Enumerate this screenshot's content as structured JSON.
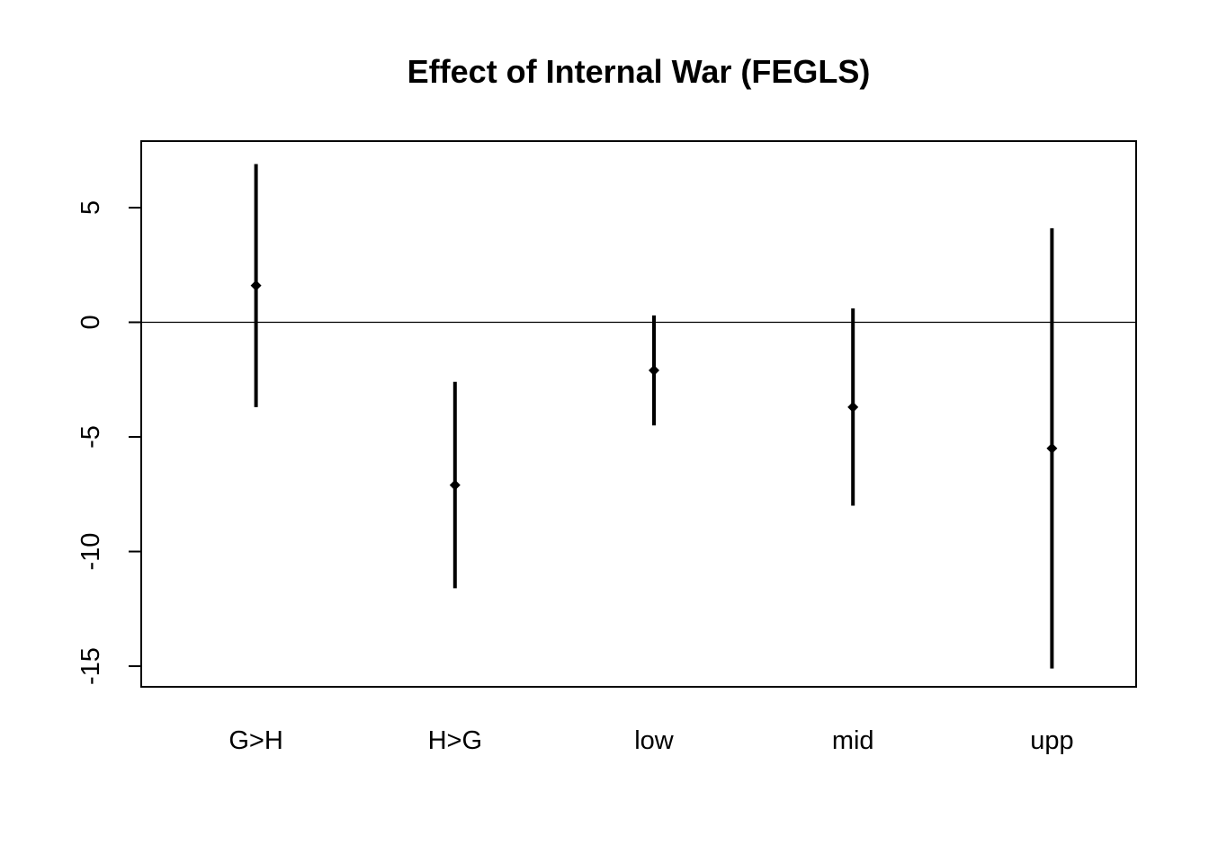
{
  "chart_data": {
    "type": "errorbar",
    "title": "Effect of Internal War (FEGLS)",
    "xlabel": "",
    "ylabel": "",
    "categories": [
      "G>H",
      "H>G",
      "low",
      "mid",
      "upp"
    ],
    "estimates": [
      1.6,
      -7.1,
      -2.1,
      -3.7,
      -5.5
    ],
    "lower": [
      -3.7,
      -11.6,
      -4.5,
      -8.0,
      -15.1
    ],
    "upper": [
      6.9,
      -2.6,
      0.3,
      0.6,
      4.1
    ],
    "ylim": [
      -15.9,
      7.9
    ],
    "yticks": [
      5,
      0,
      -5,
      -10,
      -15
    ],
    "ytick_labels": [
      "5",
      "0",
      "-5",
      "-10",
      "-15"
    ],
    "reference_line": 0,
    "grid": false,
    "legend": "none",
    "colors": {
      "marks": "#000000",
      "frame": "#000000"
    }
  }
}
